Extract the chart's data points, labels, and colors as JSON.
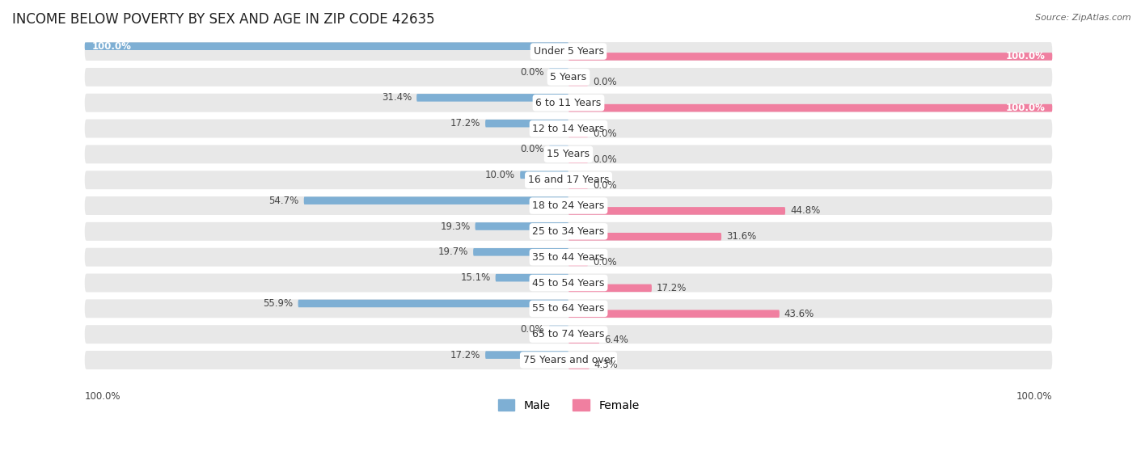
{
  "title": "INCOME BELOW POVERTY BY SEX AND AGE IN ZIP CODE 42635",
  "source": "Source: ZipAtlas.com",
  "categories": [
    "Under 5 Years",
    "5 Years",
    "6 to 11 Years",
    "12 to 14 Years",
    "15 Years",
    "16 and 17 Years",
    "18 to 24 Years",
    "25 to 34 Years",
    "35 to 44 Years",
    "45 to 54 Years",
    "55 to 64 Years",
    "65 to 74 Years",
    "75 Years and over"
  ],
  "male_values": [
    100.0,
    0.0,
    31.4,
    17.2,
    0.0,
    10.0,
    54.7,
    19.3,
    19.7,
    15.1,
    55.9,
    0.0,
    17.2
  ],
  "female_values": [
    100.0,
    0.0,
    100.0,
    0.0,
    0.0,
    0.0,
    44.8,
    31.6,
    0.0,
    17.2,
    43.6,
    6.4,
    4.3
  ],
  "male_color": "#7eafd4",
  "female_color": "#f07fa0",
  "male_color_light": "#aecde6",
  "female_color_light": "#f8b8cb",
  "male_label": "Male",
  "female_label": "Female",
  "row_bg_color": "#e8e8e8",
  "title_fontsize": 12,
  "cat_fontsize": 9,
  "value_fontsize": 8.5,
  "source_fontsize": 8,
  "legend_fontsize": 10
}
